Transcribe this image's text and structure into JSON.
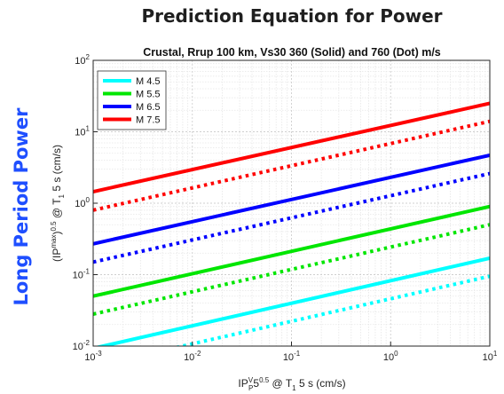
{
  "page": {
    "title": "Prediction Equation for Power",
    "side_label": "Long Period Power"
  },
  "colors": {
    "M 4.5": "#00ffff",
    "M 5.5": "#00e600",
    "M 6.5": "#0000ff",
    "M 7.5": "#ff0000"
  },
  "chart_data": {
    "type": "line",
    "title": "Crustal, Rrup 100 km, Vs30 360 (Solid) and 760 (Dot) m/s",
    "xlabel": {
      "base": "IP",
      "sup": "V",
      "sub": "P",
      "rest": "5",
      "exp": "0.5",
      "after": " @ T",
      "t_sub": "1",
      "tail": " 5 s (cm/s)"
    },
    "ylabel": {
      "pre": "(IP",
      "sup": "max",
      "mid": ")",
      "exp": "0.5",
      "after": " @ T",
      "t_sub": "1",
      "tail": " 5 s (cm/s)"
    },
    "x_scale": "log",
    "y_scale": "log",
    "xlim": [
      0.001,
      10
    ],
    "ylim": [
      0.01,
      100
    ],
    "x_ticks": [
      {
        "value": 0.001,
        "exp": "-3"
      },
      {
        "value": 0.01,
        "exp": "-2"
      },
      {
        "value": 0.1,
        "exp": "-1"
      },
      {
        "value": 1,
        "exp": "0"
      },
      {
        "value": 10,
        "exp": "1"
      }
    ],
    "y_ticks": [
      {
        "value": 0.01,
        "exp": "-2"
      },
      {
        "value": 0.1,
        "exp": "-1"
      },
      {
        "value": 1,
        "exp": "0"
      },
      {
        "value": 10,
        "exp": "1"
      },
      {
        "value": 100,
        "exp": "2"
      }
    ],
    "tick_base": "10",
    "grid": true,
    "legend": {
      "position": "top-left",
      "entries": [
        "M 4.5",
        "M 5.5",
        "M 6.5",
        "M 7.5"
      ]
    },
    "series": [
      {
        "name": "M 4.5",
        "style": "solid",
        "x": [
          0.001,
          10
        ],
        "y": [
          0.0093,
          0.17
        ]
      },
      {
        "name": "M 4.5",
        "style": "dotted",
        "x": [
          0.001,
          10
        ],
        "y": [
          0.0052,
          0.095
        ]
      },
      {
        "name": "M 5.5",
        "style": "solid",
        "x": [
          0.001,
          10
        ],
        "y": [
          0.05,
          0.9
        ]
      },
      {
        "name": "M 5.5",
        "style": "dotted",
        "x": [
          0.001,
          10
        ],
        "y": [
          0.028,
          0.5
        ]
      },
      {
        "name": "M 6.5",
        "style": "solid",
        "x": [
          0.001,
          10
        ],
        "y": [
          0.27,
          4.7
        ]
      },
      {
        "name": "M 6.5",
        "style": "dotted",
        "x": [
          0.001,
          10
        ],
        "y": [
          0.15,
          2.6
        ]
      },
      {
        "name": "M 7.5",
        "style": "solid",
        "x": [
          0.001,
          10
        ],
        "y": [
          1.45,
          25
        ]
      },
      {
        "name": "M 7.5",
        "style": "dotted",
        "x": [
          0.001,
          10
        ],
        "y": [
          0.8,
          14
        ]
      }
    ]
  }
}
